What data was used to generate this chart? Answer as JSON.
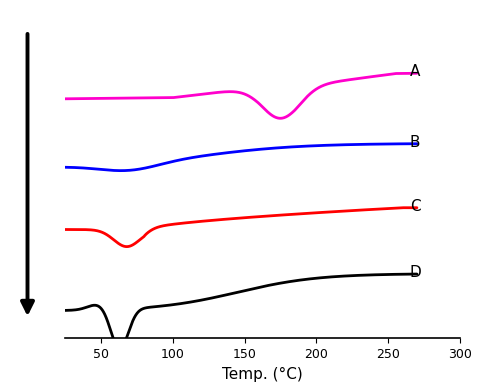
{
  "xlim": [
    25,
    300
  ],
  "ylim": [
    -0.05,
    1.0
  ],
  "xticks": [
    50,
    100,
    150,
    200,
    250,
    300
  ],
  "xlabel": "Temp. (°C)",
  "xlabel_fontsize": 11,
  "tick_fontsize": 9,
  "background_color": "#ffffff",
  "curve_colors": {
    "A": "#ff00cc",
    "B": "#0000ff",
    "C": "#ff0000",
    "D": "#000000"
  },
  "offsets": {
    "A": 0.72,
    "B": 0.5,
    "C": 0.3,
    "D": 0.04
  },
  "linewidth": 2.0,
  "label_fontsize": 11
}
